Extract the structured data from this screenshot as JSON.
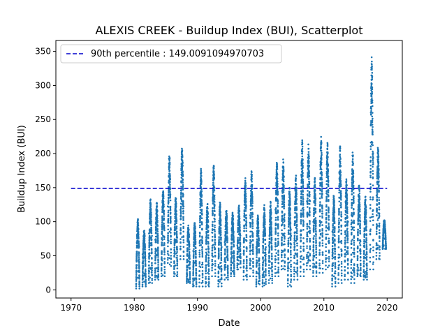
{
  "chart_data": {
    "type": "scatter",
    "title": "ALEXIS CREEK - Buildup Index (BUI), Scatterplot",
    "xlabel": "Date",
    "ylabel": "Buildup Index (BUI)",
    "xlim": [
      1967.6,
      2022.4
    ],
    "ylim": [
      -12,
      366
    ],
    "xticks": [
      1970,
      1980,
      1990,
      2000,
      2010,
      2020
    ],
    "yticks": [
      0,
      50,
      100,
      150,
      200,
      250,
      300,
      350
    ],
    "point_color": "#1f77b4",
    "reference_line": {
      "label": "90th percentile : 149.0091094970703",
      "value": 149.0091094970703,
      "x_start": 1970,
      "x_end": 2020,
      "color": "#0000cc",
      "style": "dashed"
    },
    "legend_position": "top-left",
    "season_peaks": [
      {
        "year": 1980,
        "min": 2,
        "max": 105
      },
      {
        "year": 1981,
        "min": 5,
        "max": 90
      },
      {
        "year": 1982,
        "min": 10,
        "max": 135
      },
      {
        "year": 1983,
        "min": 15,
        "max": 130
      },
      {
        "year": 1984,
        "min": 20,
        "max": 150
      },
      {
        "year": 1985,
        "min": 35,
        "max": 202
      },
      {
        "year": 1986,
        "min": 20,
        "max": 138
      },
      {
        "year": 1987,
        "min": 45,
        "max": 210
      },
      {
        "year": 1988,
        "min": 10,
        "max": 95
      },
      {
        "year": 1989,
        "min": 5,
        "max": 100
      },
      {
        "year": 1990,
        "min": 5,
        "max": 178
      },
      {
        "year": 1991,
        "min": 5,
        "max": 130
      },
      {
        "year": 1992,
        "min": 20,
        "max": 185
      },
      {
        "year": 1993,
        "min": 5,
        "max": 130
      },
      {
        "year": 1994,
        "min": 15,
        "max": 120
      },
      {
        "year": 1995,
        "min": 20,
        "max": 115
      },
      {
        "year": 1996,
        "min": 30,
        "max": 125
      },
      {
        "year": 1997,
        "min": 15,
        "max": 165
      },
      {
        "year": 1998,
        "min": 20,
        "max": 175
      },
      {
        "year": 1999,
        "min": 5,
        "max": 110
      },
      {
        "year": 2000,
        "min": 5,
        "max": 125
      },
      {
        "year": 2001,
        "min": 10,
        "max": 130
      },
      {
        "year": 2002,
        "min": 20,
        "max": 190
      },
      {
        "year": 2003,
        "min": 30,
        "max": 192
      },
      {
        "year": 2004,
        "min": 5,
        "max": 150
      },
      {
        "year": 2005,
        "min": 15,
        "max": 170
      },
      {
        "year": 2006,
        "min": 20,
        "max": 220
      },
      {
        "year": 2007,
        "min": 30,
        "max": 215
      },
      {
        "year": 2008,
        "min": 20,
        "max": 165
      },
      {
        "year": 2009,
        "min": 25,
        "max": 225
      },
      {
        "year": 2010,
        "min": 30,
        "max": 218
      },
      {
        "year": 2011,
        "min": 5,
        "max": 140
      },
      {
        "year": 2012,
        "min": 10,
        "max": 212
      },
      {
        "year": 2013,
        "min": 15,
        "max": 165
      },
      {
        "year": 2014,
        "min": 10,
        "max": 205
      },
      {
        "year": 2015,
        "min": 20,
        "max": 155
      },
      {
        "year": 2016,
        "min": 15,
        "max": 140
      },
      {
        "year": 2017,
        "min": 30,
        "max": 348
      },
      {
        "year": 2018,
        "min": 45,
        "max": 212
      },
      {
        "year": 2019,
        "min": 60,
        "max": 105
      }
    ]
  }
}
